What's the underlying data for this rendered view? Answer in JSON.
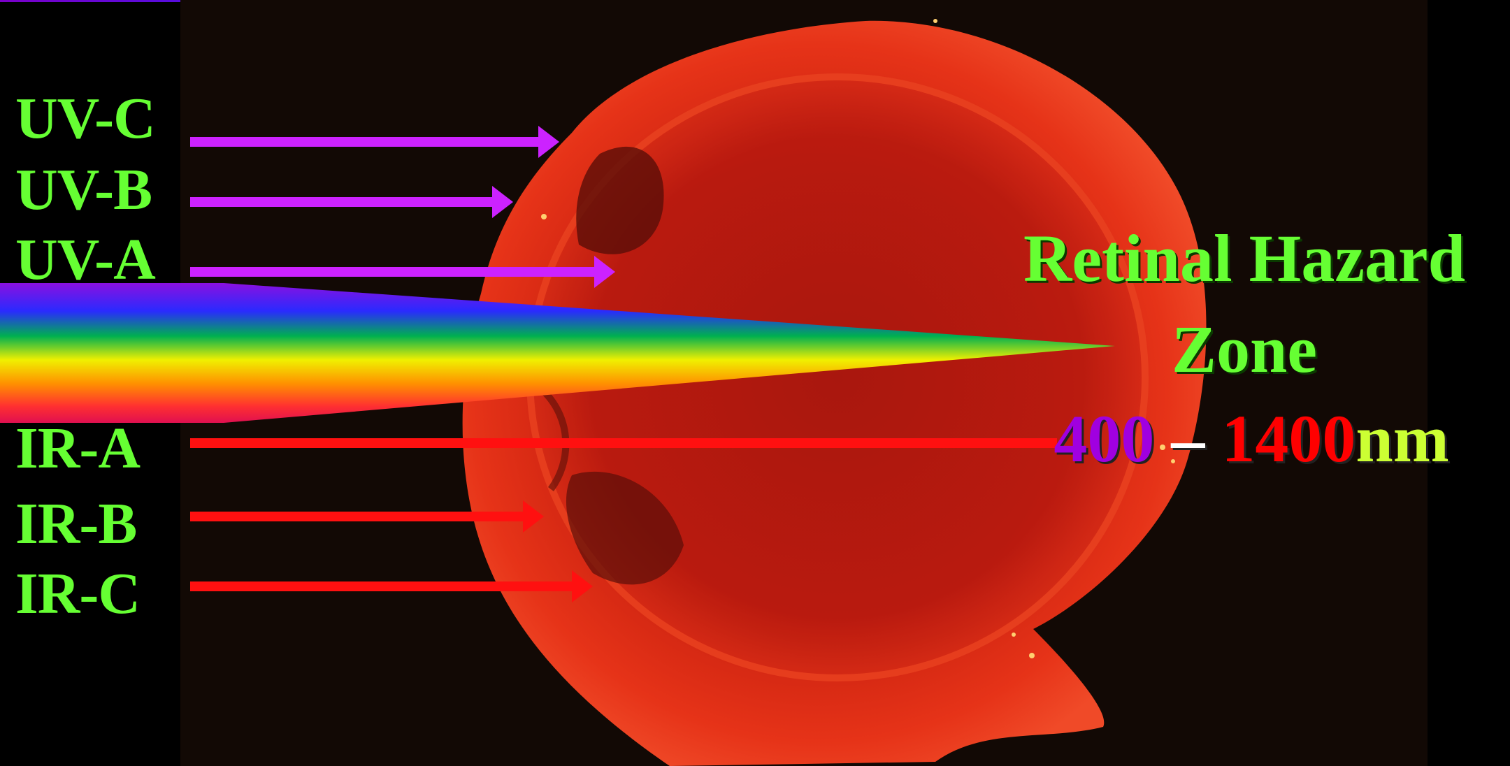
{
  "bands_upper": [
    "UV-C",
    "UV-B",
    "UV-A"
  ],
  "bands_lower": [
    "IR-A",
    "IR-B",
    "IR-C"
  ],
  "hazard": {
    "line1": "Retinal Hazard",
    "line2": "Zone",
    "range_low": "400",
    "range_sep": " – ",
    "range_high": "1400",
    "range_unit": "nm"
  },
  "colors": {
    "label_green": "#66ff33",
    "uv_arrow": "#cc22ff",
    "ir_arrow": "#ff1010",
    "range_low": "#a000e0",
    "range_high": "#ff0000",
    "range_unit": "#ccff33",
    "eye_tissue": "#e02010"
  },
  "icons": [
    "uv-arrow-icon",
    "ir-arrow-icon",
    "visible-spectrum-wedge"
  ]
}
